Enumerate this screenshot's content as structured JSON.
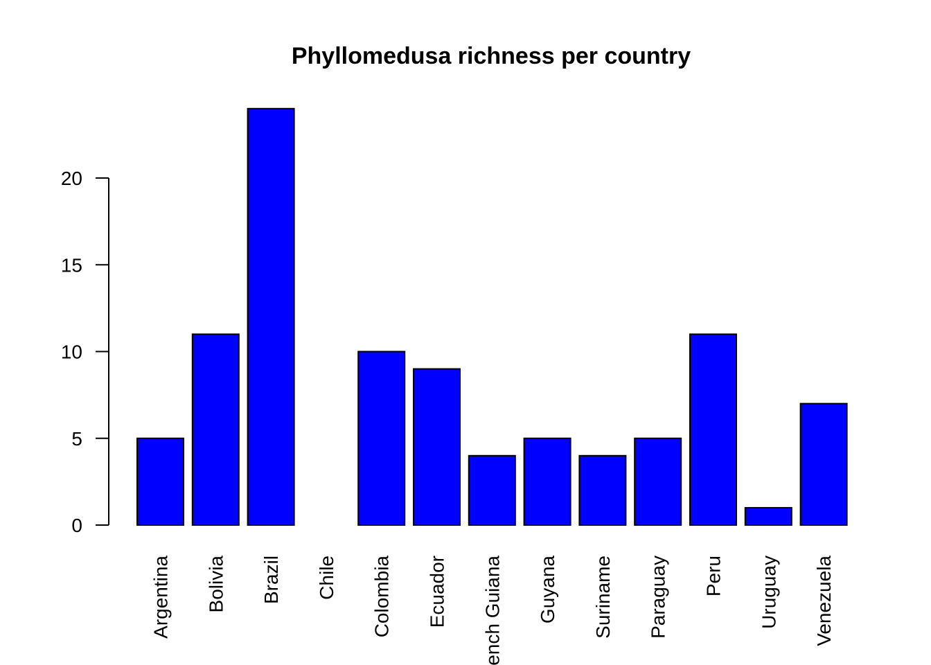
{
  "chart_data": {
    "type": "bar",
    "title": "Phyllomedusa richness per country",
    "xlabel": "",
    "ylabel": "",
    "categories": [
      "Argentina",
      "Bolivia",
      "Brazil",
      "Chile",
      "Colombia",
      "Ecuador",
      "French Guiana",
      "Guyana",
      "Suriname",
      "Paraguay",
      "Peru",
      "Uruguay",
      "Venezuela"
    ],
    "values": [
      5,
      11,
      24,
      0,
      10,
      9,
      4,
      5,
      4,
      5,
      11,
      1,
      7
    ],
    "yticks": [
      0,
      5,
      10,
      15,
      20
    ],
    "ytick_labels": [
      "0",
      "5",
      "10",
      "15",
      "20"
    ],
    "ylim": [
      0,
      24
    ],
    "bar_color": "#0000ff",
    "grid": false,
    "legend": "none"
  }
}
